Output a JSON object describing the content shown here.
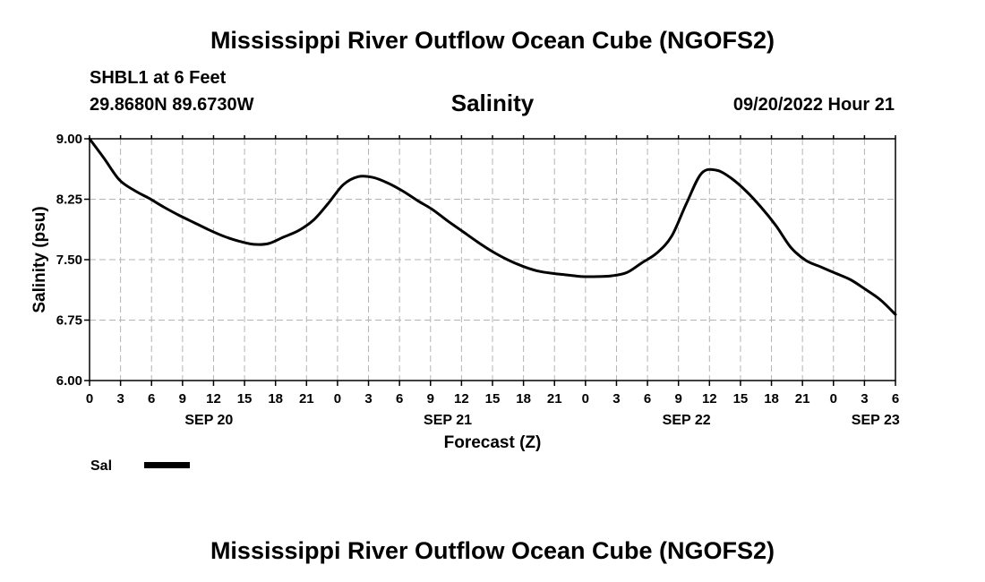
{
  "header": {
    "title": "Mississippi River Outflow Ocean Cube (NGOFS2)",
    "station": "SHBL1 at 6 Feet",
    "coords": "29.8680N  89.6730W",
    "subtitle": "Salinity",
    "datetime": "09/20/2022 Hour 21"
  },
  "footer": {
    "title": "Mississippi River Outflow Ocean Cube (NGOFS2)"
  },
  "legend": {
    "label": "Sal",
    "color": "#000000"
  },
  "chart_data": {
    "type": "line",
    "title": "Salinity",
    "xlabel": "Forecast (Z)",
    "ylabel": "Salinity (psu)",
    "xlim": [
      0,
      81
    ],
    "ylim": [
      6.0,
      9.0
    ],
    "grid": true,
    "legend_placement": "bottom-left",
    "y_ticks": [
      "9.00",
      "8.25",
      "7.50",
      "6.75",
      "6.00"
    ],
    "x_ticks": [
      "0",
      "3",
      "6",
      "9",
      "12",
      "15",
      "18",
      "21",
      "0",
      "3",
      "6",
      "9",
      "12",
      "15",
      "18",
      "21",
      "0",
      "3",
      "6",
      "9",
      "12",
      "15",
      "18",
      "21",
      "0",
      "3",
      "6"
    ],
    "date_labels": [
      {
        "label": "SEP 20",
        "hour": 12
      },
      {
        "label": "SEP 21",
        "hour": 36
      },
      {
        "label": "SEP 22",
        "hour": 60
      },
      {
        "label": "SEP 23",
        "hour": 79
      }
    ],
    "series": [
      {
        "name": "Sal",
        "color": "#000000",
        "x": [
          0,
          1.5,
          3,
          4.5,
          6,
          7.5,
          9,
          10.5,
          12,
          13.5,
          15,
          16.5,
          18,
          19.5,
          21,
          22.5,
          24,
          25.5,
          27,
          28.5,
          30,
          31.5,
          33,
          34.5,
          36,
          37.5,
          39,
          40.5,
          42,
          43.5,
          45,
          46.5,
          48,
          49.5,
          51,
          52.5,
          54,
          55.5,
          57,
          58.5,
          60,
          61.5,
          63,
          64.5,
          66,
          67.5,
          69,
          70.5,
          72,
          73.5,
          75,
          76.5,
          78,
          79.5,
          81
        ],
        "values": [
          9.0,
          8.75,
          8.49,
          8.36,
          8.26,
          8.15,
          8.05,
          7.96,
          7.87,
          7.79,
          7.73,
          7.69,
          7.7,
          7.78,
          7.86,
          7.99,
          8.2,
          8.43,
          8.53,
          8.52,
          8.45,
          8.35,
          8.23,
          8.12,
          7.98,
          7.85,
          7.72,
          7.6,
          7.5,
          7.42,
          7.36,
          7.33,
          7.31,
          7.29,
          7.29,
          7.3,
          7.34,
          7.46,
          7.58,
          7.79,
          8.2,
          8.57,
          8.61,
          8.51,
          8.35,
          8.15,
          7.92,
          7.65,
          7.49,
          7.41,
          7.33,
          7.25,
          7.13,
          7.0,
          6.82
        ]
      }
    ]
  }
}
